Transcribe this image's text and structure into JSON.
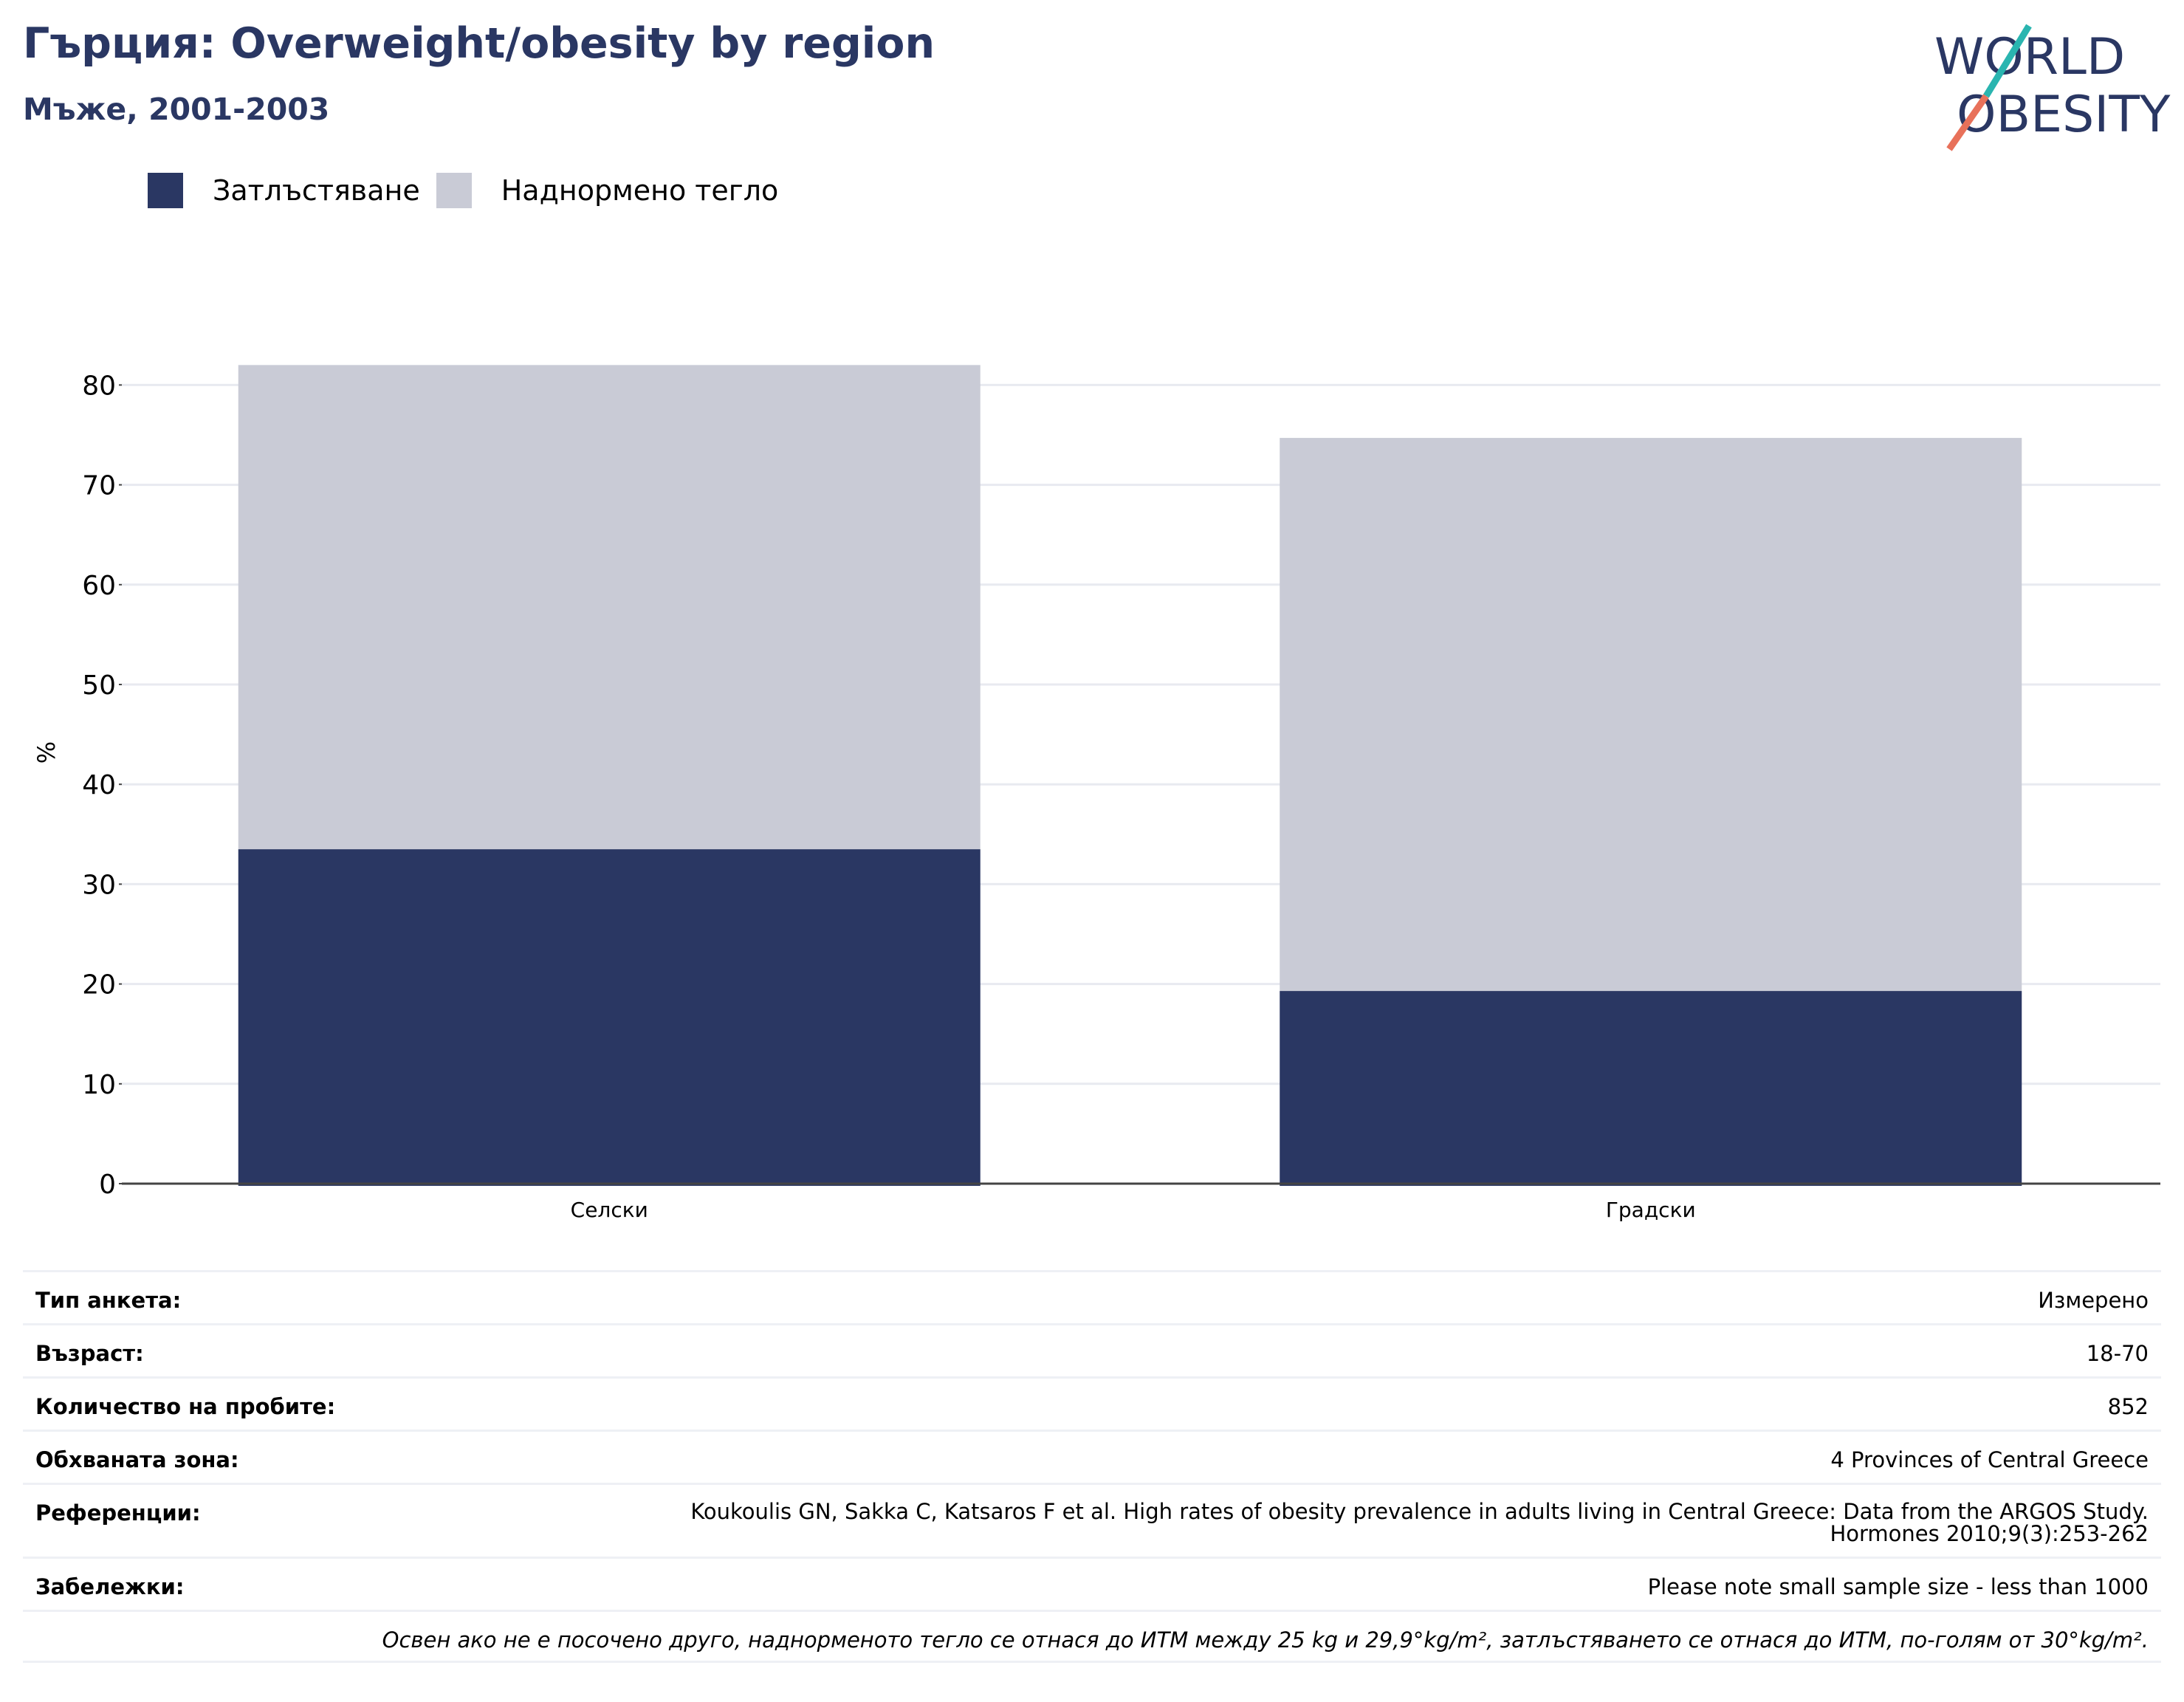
{
  "header": {
    "title": "Гърция: Overweight/obesity by region",
    "subtitle": "Мъже, 2001-2003"
  },
  "logo": {
    "line1": "WORLD",
    "line2": "OBESITY",
    "slash_colors": [
      "#2ab5b0",
      "#e8715a"
    ],
    "text_color": "#2a3763"
  },
  "legend": [
    {
      "label": "Затлъстяване",
      "color": "#2a3763"
    },
    {
      "label": "Наднормено тегло",
      "color": "#c9cbd6"
    }
  ],
  "chart_data": {
    "type": "bar",
    "stacked": true,
    "categories": [
      "Селски",
      "Градски"
    ],
    "series": [
      {
        "name": "Затлъстяване",
        "color": "#2a3763",
        "values": [
          33.5,
          19.3
        ]
      },
      {
        "name": "Наднормено тегло",
        "color": "#c9cbd6",
        "values": [
          48.5,
          55.4
        ]
      }
    ],
    "ylabel": "%",
    "ylim": [
      0,
      86
    ],
    "yticks": [
      0,
      10,
      20,
      30,
      40,
      50,
      60,
      70,
      80
    ],
    "grid": true,
    "legend_position": "top-left"
  },
  "info": {
    "rows": [
      {
        "label": "Тип анкета:",
        "value": "Измерено"
      },
      {
        "label": "Възраст:",
        "value": "18-70"
      },
      {
        "label": "Количество на пробите:",
        "value": "852"
      },
      {
        "label": "Обхваната зона:",
        "value": "4 Provinces of Central Greece"
      },
      {
        "label": "Референции:",
        "value_lines": [
          "Koukoulis GN, Sakka C, Katsaros F et al. High rates of obesity prevalence in adults living in Central Greece: Data from the ARGOS Study.",
          "Hormones 2010;9(3):253-262"
        ]
      },
      {
        "label": "Забележки:",
        "value": "Please note small sample size - less than 1000"
      }
    ],
    "footnote": "Освен ако не е посочено друго, наднорменото тегло се отнася до ИТМ между 25 kg и 29,9°kg/m², затлъстяването се отнася до ИТМ, по-голям от 30°kg/m²."
  }
}
